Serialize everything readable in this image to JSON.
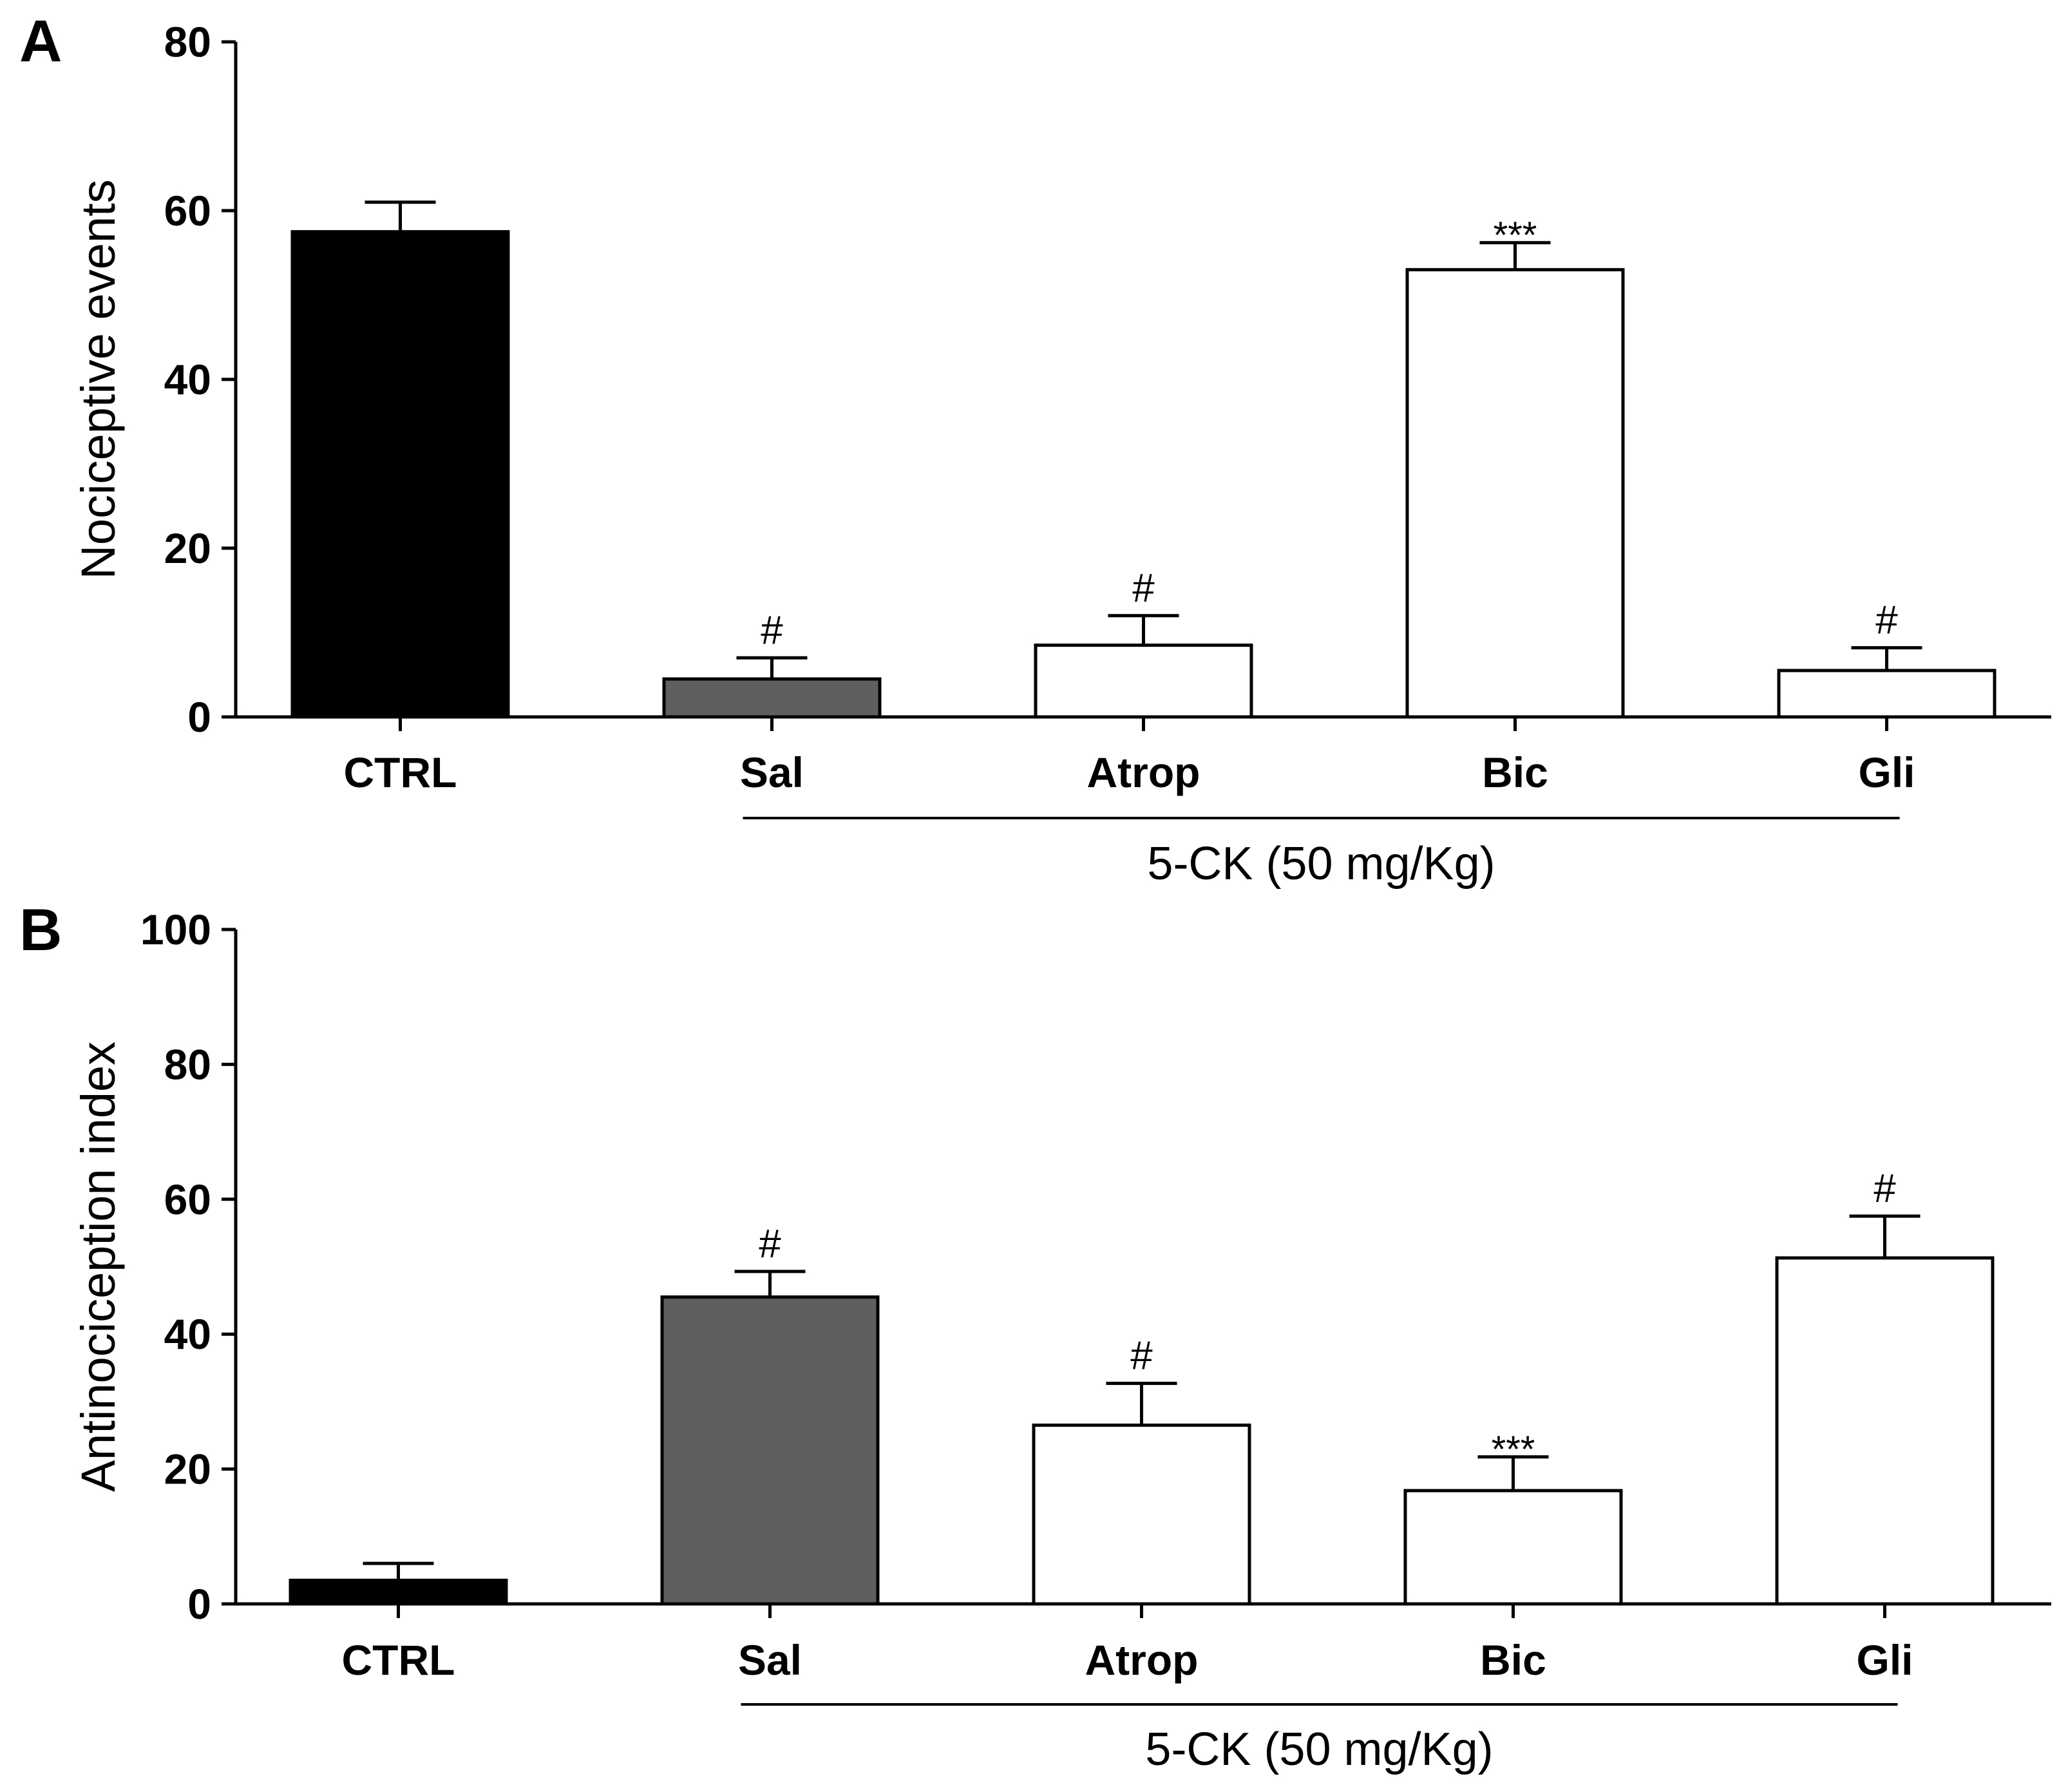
{
  "colors": {
    "ctrl": "#000000",
    "sal": "#5f5f5f",
    "treatment": "#ffffff",
    "axis": "#000000"
  },
  "chart_data": [
    {
      "type": "bar",
      "panel": "A",
      "ylabel": "Nociceptive events",
      "ylim": [
        0,
        80
      ],
      "yticks": [
        0,
        20,
        40,
        60,
        80
      ],
      "categories": [
        "CTRL",
        "Sal",
        "Atrop",
        "Bic",
        "Gli"
      ],
      "values": [
        57.5,
        4.5,
        8.5,
        53,
        5.5
      ],
      "errors": [
        3.5,
        2.5,
        3.5,
        3.2,
        2.7
      ],
      "annotations": [
        "",
        "#",
        "#",
        "***",
        "#"
      ],
      "group_label": "5-CK (50 mg/Kg)",
      "group_span": [
        "Sal",
        "Gli"
      ],
      "grid": false,
      "legend": false
    },
    {
      "type": "bar",
      "panel": "B",
      "ylabel": "Antinociception index",
      "ylim": [
        0,
        100
      ],
      "yticks": [
        0,
        20,
        40,
        60,
        80,
        100
      ],
      "categories": [
        "CTRL",
        "Sal",
        "Atrop",
        "Bic",
        "Gli"
      ],
      "values": [
        3.5,
        45.5,
        26.5,
        16.8,
        51.3
      ],
      "errors": [
        2.5,
        3.8,
        6.2,
        5,
        6.2
      ],
      "annotations": [
        "",
        "#",
        "#",
        "***",
        "#"
      ],
      "group_label": "5-CK (50 mg/Kg)",
      "group_span": [
        "Sal",
        "Gli"
      ],
      "grid": false,
      "legend": false
    }
  ]
}
